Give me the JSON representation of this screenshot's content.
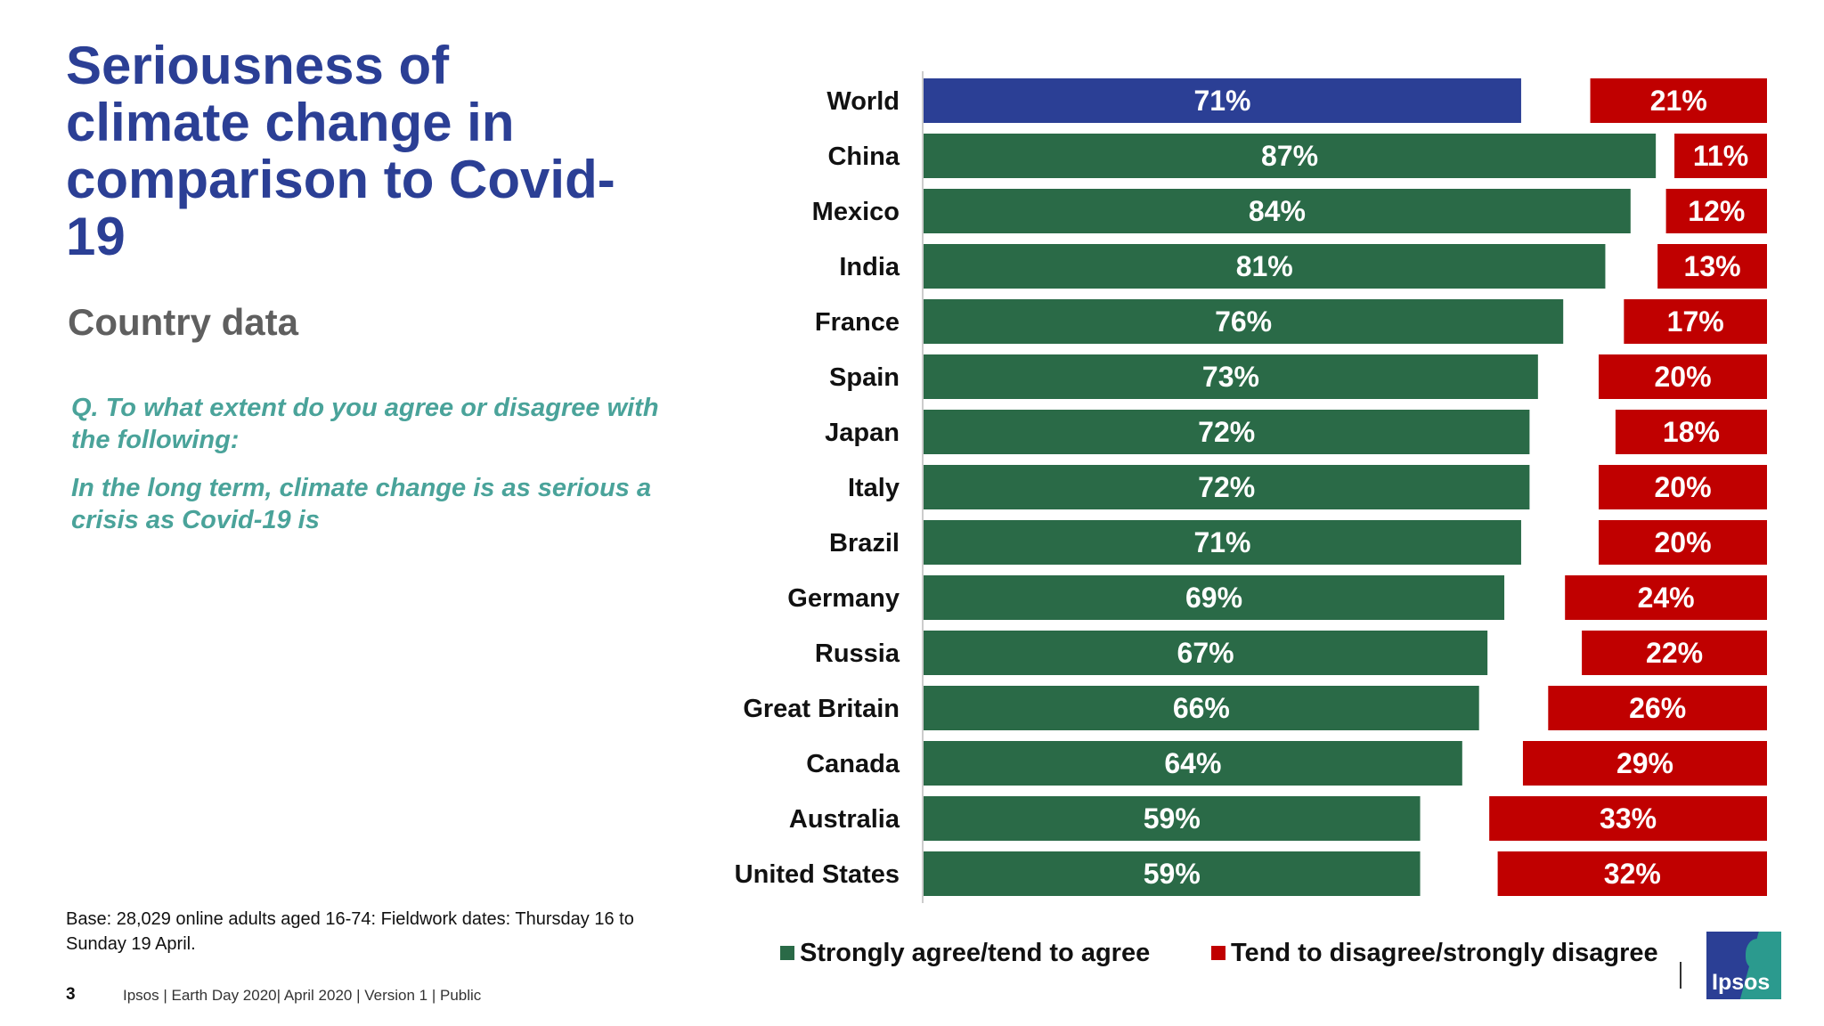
{
  "title": "Seriousness of climate change in comparison to Covid-19",
  "subtitle": "Country data",
  "question": {
    "line1": "Q. To what extent do you agree or disagree with the following:",
    "line2": "In the long term, climate change is as serious a crisis as Covid-19 is"
  },
  "base_note": "Base: 28,029 online adults aged 16-74: Fieldwork dates: Thursday 16 to Sunday 19 April.",
  "page_number": "3",
  "footer": "Ipsos | Earth Day 2020| April 2020 | Version 1 | Public",
  "logo_text": "Ipsos",
  "colors": {
    "world_bar": "#2b3f95",
    "agree": "#2a6a47",
    "disagree": "#c00000",
    "title": "#2b3f95",
    "question": "#4aa39a"
  },
  "chart_data": {
    "type": "bar",
    "orientation": "horizontal",
    "categories": [
      "World",
      "China",
      "Mexico",
      "India",
      "France",
      "Spain",
      "Japan",
      "Italy",
      "Brazil",
      "Germany",
      "Russia",
      "Great Britain",
      "Canada",
      "Australia",
      "United States"
    ],
    "series": [
      {
        "name": "Strongly agree/tend to agree",
        "values": [
          71,
          87,
          84,
          81,
          76,
          73,
          72,
          72,
          71,
          69,
          67,
          66,
          64,
          59,
          59
        ],
        "labels": [
          "71%",
          "87%",
          "84%",
          "81%",
          "76%",
          "73%",
          "72%",
          "72%",
          "71%",
          "69%",
          "67%",
          "66%",
          "64%",
          "59%",
          "59%"
        ]
      },
      {
        "name": "Tend to disagree/strongly disagree",
        "values": [
          21,
          11,
          12,
          13,
          17,
          20,
          18,
          20,
          20,
          24,
          22,
          26,
          29,
          33,
          32
        ],
        "labels": [
          "21%",
          "11%",
          "12%",
          "13%",
          "17%",
          "20%",
          "18%",
          "20%",
          "20%",
          "24%",
          "22%",
          "26%",
          "29%",
          "33%",
          "32%"
        ]
      }
    ],
    "xlim": [
      0,
      100
    ],
    "legend_position": "bottom"
  }
}
